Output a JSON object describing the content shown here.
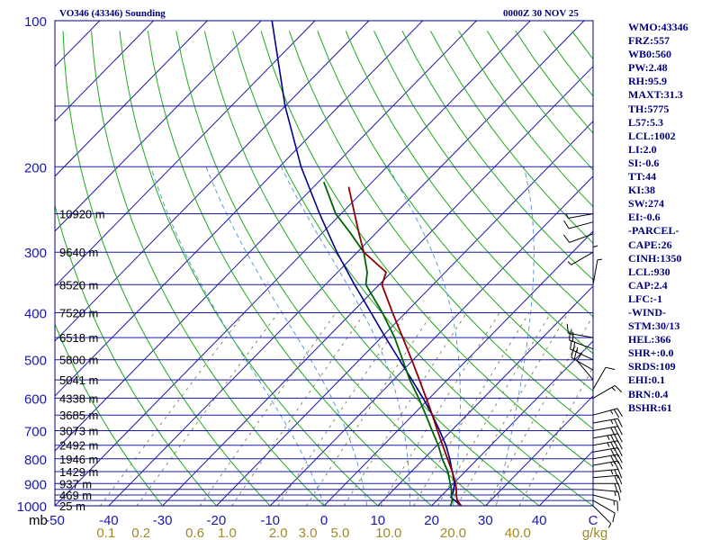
{
  "header": {
    "title": "VO346 (43346) Sounding",
    "datetime": "0000Z 30 NOV 25"
  },
  "indices": [
    {
      "label": "WMO",
      "value": "43346"
    },
    {
      "label": "FRZ",
      "value": "557"
    },
    {
      "label": "WB0",
      "value": "560"
    },
    {
      "label": "PW",
      "value": "2.48"
    },
    {
      "label": "RH",
      "value": "95.9"
    },
    {
      "label": "MAXT",
      "value": "31.3"
    },
    {
      "label": "TH",
      "value": "5775"
    },
    {
      "label": "L57",
      "value": "5.3"
    },
    {
      "label": "LCL",
      "value": "1002"
    },
    {
      "label": "LI",
      "value": "2.0"
    },
    {
      "label": "SI",
      "value": "-0.6"
    },
    {
      "label": "TT",
      "value": "44"
    },
    {
      "label": "KI",
      "value": "38"
    },
    {
      "label": "SW",
      "value": "274"
    },
    {
      "label": "EI",
      "value": "-0.6"
    },
    {
      "label": "",
      "value": "-PARCEL-"
    },
    {
      "label": "CAPE",
      "value": "26"
    },
    {
      "label": "CINH",
      "value": "1350"
    },
    {
      "label": "LCL",
      "value": "930"
    },
    {
      "label": "CAP",
      "value": "2.4"
    },
    {
      "label": "LFC",
      "value": "-1"
    },
    {
      "label": "",
      "value": "-WIND-"
    },
    {
      "label": "STM",
      "value": "30/13"
    },
    {
      "label": "HEL",
      "value": "366"
    },
    {
      "label": "SHR+",
      "value": "0.0"
    },
    {
      "label": "SRDS",
      "value": "109"
    },
    {
      "label": "EHI",
      "value": "0.1"
    },
    {
      "label": "BRN",
      "value": "0.4"
    },
    {
      "label": "BSHR",
      "value": "61"
    }
  ],
  "colors": {
    "frame": "#00007a",
    "isobar": "#1a1aa6",
    "isotherm": "#1a1aa6",
    "dry_adiabat": "#22a81e",
    "moist_adiabat": "#5a9ad6",
    "mixing_ratio": "#8a8a5a",
    "temperature": "#8b0000",
    "dewpoint": "#006400",
    "parcel": "#00008b",
    "wind": "#000000",
    "pressure_label": "#1a1aa6",
    "mixing_label": "#a08a28"
  },
  "chart_data": {
    "type": "skew-t",
    "title": "VO346 (43346) Sounding",
    "pressure_unit": "mb",
    "pressure_range": [
      1000,
      100
    ],
    "temperature_range": [
      -50,
      50
    ],
    "pressure_ticks": [
      {
        "p": 100,
        "label": "100"
      },
      {
        "p": 200,
        "label": "200"
      },
      {
        "p": 300,
        "label": "300"
      },
      {
        "p": 400,
        "label": "400"
      },
      {
        "p": 500,
        "label": "500"
      },
      {
        "p": 600,
        "label": "600"
      },
      {
        "p": 700,
        "label": "700"
      },
      {
        "p": 800,
        "label": "800"
      },
      {
        "p": 900,
        "label": "900"
      },
      {
        "p": 1000,
        "label": "1000"
      }
    ],
    "isobars": [
      150,
      200,
      250,
      300,
      350,
      400,
      450,
      500,
      550,
      600,
      650,
      700,
      750,
      800,
      850,
      900,
      925,
      950,
      975,
      1000
    ],
    "temperature_ticks": [
      {
        "t": -50,
        "label": "-50"
      },
      {
        "t": -40,
        "label": "-40"
      },
      {
        "t": -30,
        "label": "-30"
      },
      {
        "t": -20,
        "label": "-20"
      },
      {
        "t": -10,
        "label": "-10"
      },
      {
        "t": 0,
        "label": "0"
      },
      {
        "t": 10,
        "label": "10"
      },
      {
        "t": 20,
        "label": "20"
      },
      {
        "t": 30,
        "label": "30"
      },
      {
        "t": 40,
        "label": "40"
      },
      {
        "t": 50,
        "label": "C"
      }
    ],
    "mixing_ratio_unit": "g/kg",
    "mixing_ratio_ticks": [
      {
        "t": -40.5,
        "label": "0.1"
      },
      {
        "t": -34,
        "label": "0.2"
      },
      {
        "t": -24,
        "label": "0.6"
      },
      {
        "t": -18,
        "label": "1.0"
      },
      {
        "t": -8.5,
        "label": "2.0"
      },
      {
        "t": -3,
        "label": "3.0"
      },
      {
        "t": 3,
        "label": "5.0"
      },
      {
        "t": 12,
        "label": "10.0"
      },
      {
        "t": 24,
        "label": "20.0"
      },
      {
        "t": 36,
        "label": "40.0"
      }
    ],
    "height_labels": [
      {
        "p": 25,
        "label": "10920 m",
        "pos": 236
      },
      {
        "p": 25,
        "label": "9640 m",
        "pos": 279
      },
      {
        "p": 25,
        "label": "8520 m",
        "pos": 315
      },
      {
        "p": 25,
        "label": "7520 m",
        "pos": 346
      },
      {
        "p": 25,
        "label": "6518 m",
        "pos": 374
      },
      {
        "p": 25,
        "label": "5800 m",
        "pos": 398
      },
      {
        "p": 25,
        "label": "5041 m",
        "pos": 420
      },
      {
        "p": 25,
        "label": "4338 m",
        "pos": 440
      },
      {
        "p": 25,
        "label": "3685 m",
        "pos": 458
      },
      {
        "p": 25,
        "label": "3073 m",
        "pos": 476
      },
      {
        "p": 25,
        "label": "2492 m",
        "pos": 491
      },
      {
        "p": 25,
        "label": "1946 m",
        "pos": 506
      },
      {
        "p": 25,
        "label": "1429 m",
        "pos": 520
      },
      {
        "p": 25,
        "label": "937 m",
        "pos": 534
      },
      {
        "p": 25,
        "label": "469 m",
        "pos": 546
      },
      {
        "p": 25,
        "label": "25 m",
        "pos": 557
      }
    ],
    "height_levels": [
      {
        "p": 250,
        "label": "10920 m"
      },
      {
        "p": 300,
        "label": "9640 m"
      },
      {
        "p": 350,
        "label": "8520 m"
      },
      {
        "p": 400,
        "label": "7520 m"
      },
      {
        "p": 450,
        "label": "6518 m"
      },
      {
        "p": 500,
        "label": "5800 m"
      },
      {
        "p": 550,
        "label": "5041 m"
      },
      {
        "p": 600,
        "label": "4338 m"
      },
      {
        "p": 650,
        "label": "3685 m"
      },
      {
        "p": 700,
        "label": "3073 m"
      },
      {
        "p": 750,
        "label": "2492 m"
      },
      {
        "p": 800,
        "label": "1946 m"
      },
      {
        "p": 850,
        "label": "1429 m"
      },
      {
        "p": 900,
        "label": "937 m"
      },
      {
        "p": 950,
        "label": "469 m"
      },
      {
        "p": 1000,
        "label": "25 m"
      }
    ],
    "temperature_profile": [
      {
        "p": 1000,
        "t": 25.5
      },
      {
        "p": 975,
        "t": 23.8
      },
      {
        "p": 950,
        "t": 22.6
      },
      {
        "p": 925,
        "t": 21.6
      },
      {
        "p": 900,
        "t": 20.4
      },
      {
        "p": 850,
        "t": 17.6
      },
      {
        "p": 800,
        "t": 14.4
      },
      {
        "p": 750,
        "t": 11.0
      },
      {
        "p": 700,
        "t": 7.4
      },
      {
        "p": 650,
        "t": 3.6
      },
      {
        "p": 600,
        "t": -0.6
      },
      {
        "p": 550,
        "t": -5.2
      },
      {
        "p": 500,
        "t": -10.3
      },
      {
        "p": 450,
        "t": -16.0
      },
      {
        "p": 400,
        "t": -22.4
      },
      {
        "p": 350,
        "t": -29.5
      },
      {
        "p": 330,
        "t": -31.0
      },
      {
        "p": 300,
        "t": -38.8
      },
      {
        "p": 275,
        "t": -43.0
      },
      {
        "p": 250,
        "t": -47.5
      },
      {
        "p": 220,
        "t": -53.5
      }
    ],
    "dewpoint_profile": [
      {
        "p": 1000,
        "t": 23.5
      },
      {
        "p": 975,
        "t": 22.9
      },
      {
        "p": 950,
        "t": 21.7
      },
      {
        "p": 925,
        "t": 20.7
      },
      {
        "p": 900,
        "t": 19.4
      },
      {
        "p": 850,
        "t": 16.8
      },
      {
        "p": 800,
        "t": 13.4
      },
      {
        "p": 750,
        "t": 10.2
      },
      {
        "p": 700,
        "t": 6.4
      },
      {
        "p": 650,
        "t": 2.4
      },
      {
        "p": 600,
        "t": -2.0
      },
      {
        "p": 550,
        "t": -7.0
      },
      {
        "p": 500,
        "t": -12.0
      },
      {
        "p": 450,
        "t": -17.5
      },
      {
        "p": 400,
        "t": -24.3
      },
      {
        "p": 350,
        "t": -32.5
      },
      {
        "p": 330,
        "t": -34.5
      },
      {
        "p": 300,
        "t": -38.8
      },
      {
        "p": 275,
        "t": -44.5
      },
      {
        "p": 250,
        "t": -51.0
      },
      {
        "p": 215,
        "t": -59.0
      }
    ],
    "parcel_profile": [
      {
        "p": 1000,
        "t": 25.5
      },
      {
        "p": 960,
        "t": 22.0
      },
      {
        "p": 940,
        "t": 21.6
      },
      {
        "p": 900,
        "t": 20.2
      },
      {
        "p": 850,
        "t": 17.6
      },
      {
        "p": 800,
        "t": 14.8
      },
      {
        "p": 750,
        "t": 11.6
      },
      {
        "p": 700,
        "t": 7.8
      },
      {
        "p": 650,
        "t": 3.6
      },
      {
        "p": 600,
        "t": -1.2
      },
      {
        "p": 550,
        "t": -6.6
      },
      {
        "p": 500,
        "t": -12.6
      },
      {
        "p": 450,
        "t": -19.2
      },
      {
        "p": 400,
        "t": -26.4
      },
      {
        "p": 350,
        "t": -34.6
      },
      {
        "p": 300,
        "t": -43.8
      },
      {
        "p": 250,
        "t": -54.0
      },
      {
        "p": 200,
        "t": -66.0
      },
      {
        "p": 150,
        "t": -80.0
      },
      {
        "p": 100,
        "t": -98.0
      }
    ],
    "winds": [
      {
        "p": 1000,
        "dir": 135,
        "spd": 5
      },
      {
        "p": 975,
        "dir": 120,
        "spd": 10
      },
      {
        "p": 950,
        "dir": 105,
        "spd": 15
      },
      {
        "p": 925,
        "dir": 95,
        "spd": 15
      },
      {
        "p": 900,
        "dir": 90,
        "spd": 20
      },
      {
        "p": 875,
        "dir": 85,
        "spd": 20
      },
      {
        "p": 850,
        "dir": 85,
        "spd": 25
      },
      {
        "p": 825,
        "dir": 80,
        "spd": 25
      },
      {
        "p": 800,
        "dir": 80,
        "spd": 30
      },
      {
        "p": 775,
        "dir": 80,
        "spd": 30
      },
      {
        "p": 750,
        "dir": 80,
        "spd": 35
      },
      {
        "p": 725,
        "dir": 80,
        "spd": 35
      },
      {
        "p": 700,
        "dir": 80,
        "spd": 30
      },
      {
        "p": 675,
        "dir": 80,
        "spd": 25
      },
      {
        "p": 650,
        "dir": 75,
        "spd": 25
      },
      {
        "p": 600,
        "dir": 60,
        "spd": 15
      },
      {
        "p": 575,
        "dir": 30,
        "spd": 10
      },
      {
        "p": 550,
        "dir": 320,
        "spd": 10
      },
      {
        "p": 525,
        "dir": 300,
        "spd": 20
      },
      {
        "p": 500,
        "dir": 295,
        "spd": 25
      },
      {
        "p": 475,
        "dir": 290,
        "spd": 20
      },
      {
        "p": 450,
        "dir": 280,
        "spd": 15
      },
      {
        "p": 350,
        "dir": 10,
        "spd": 5
      },
      {
        "p": 330,
        "dir": 0,
        "spd": 5
      },
      {
        "p": 300,
        "dir": 240,
        "spd": 5
      },
      {
        "p": 275,
        "dir": 250,
        "spd": 10
      },
      {
        "p": 260,
        "dir": 255,
        "spd": 10
      },
      {
        "p": 250,
        "dir": 260,
        "spd": 5
      }
    ]
  }
}
